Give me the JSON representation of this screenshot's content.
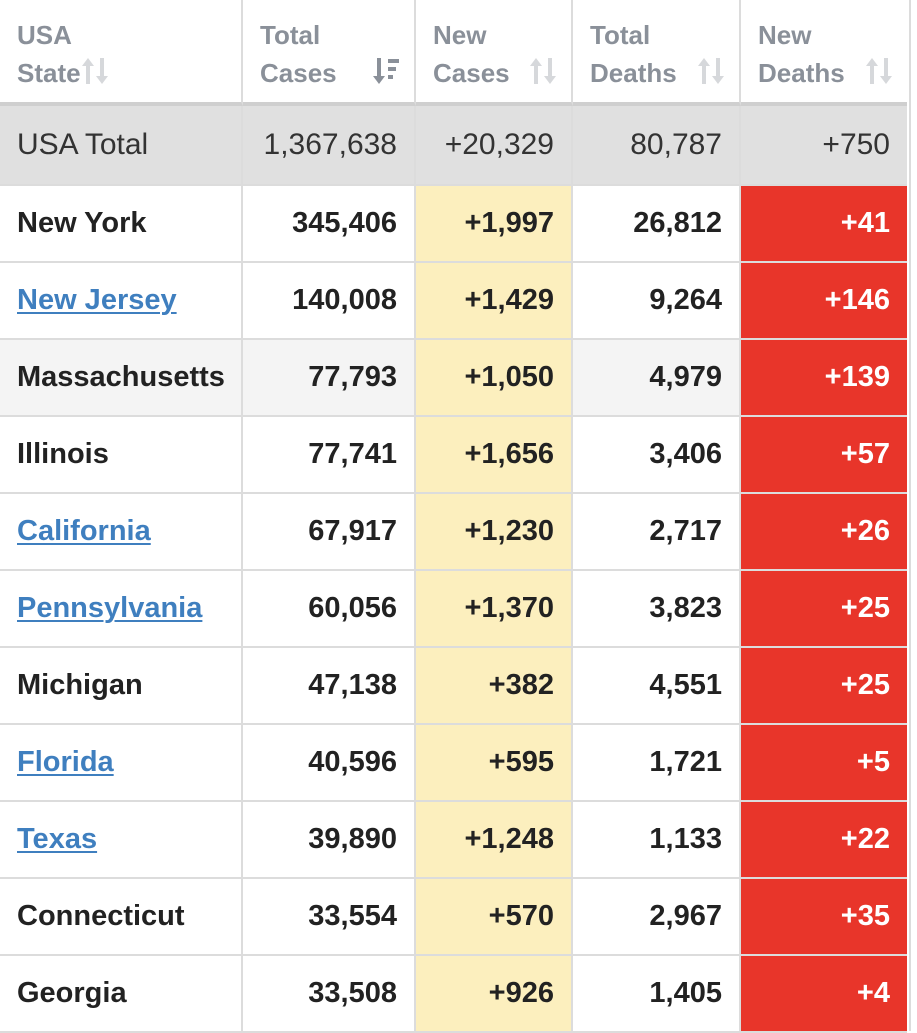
{
  "headers": [
    {
      "label": "USA\nState"
    },
    {
      "label": "Total\nCases"
    },
    {
      "label": "New\nCases"
    },
    {
      "label": "Total\nDeaths"
    },
    {
      "label": "New\nDeaths"
    }
  ],
  "total": {
    "state": "USA Total",
    "total_cases": "1,367,638",
    "new_cases": "+20,329",
    "total_deaths": "80,787",
    "new_deaths": "+750"
  },
  "rows": [
    {
      "state": "New York",
      "link": false,
      "total_cases": "345,406",
      "new_cases": "+1,997",
      "total_deaths": "26,812",
      "new_deaths": "+41"
    },
    {
      "state": "New Jersey",
      "link": true,
      "total_cases": "140,008",
      "new_cases": "+1,429",
      "total_deaths": "9,264",
      "new_deaths": "+146"
    },
    {
      "state": "Massachusetts",
      "link": false,
      "total_cases": "77,793",
      "new_cases": "+1,050",
      "total_deaths": "4,979",
      "new_deaths": "+139"
    },
    {
      "state": "Illinois",
      "link": false,
      "total_cases": "77,741",
      "new_cases": "+1,656",
      "total_deaths": "3,406",
      "new_deaths": "+57"
    },
    {
      "state": "California",
      "link": true,
      "total_cases": "67,917",
      "new_cases": "+1,230",
      "total_deaths": "2,717",
      "new_deaths": "+26"
    },
    {
      "state": "Pennsylvania",
      "link": true,
      "total_cases": "60,056",
      "new_cases": "+1,370",
      "total_deaths": "3,823",
      "new_deaths": "+25"
    },
    {
      "state": "Michigan",
      "link": false,
      "total_cases": "47,138",
      "new_cases": "+382",
      "total_deaths": "4,551",
      "new_deaths": "+25"
    },
    {
      "state": "Florida",
      "link": true,
      "total_cases": "40,596",
      "new_cases": "+595",
      "total_deaths": "1,721",
      "new_deaths": "+5"
    },
    {
      "state": "Texas",
      "link": true,
      "total_cases": "39,890",
      "new_cases": "+1,248",
      "total_deaths": "1,133",
      "new_deaths": "+22"
    },
    {
      "state": "Connecticut",
      "link": false,
      "total_cases": "33,554",
      "new_cases": "+570",
      "total_deaths": "2,967",
      "new_deaths": "+35"
    },
    {
      "state": "Georgia",
      "link": false,
      "total_cases": "33,508",
      "new_cases": "+926",
      "total_deaths": "1,405",
      "new_deaths": "+4"
    }
  ],
  "colors": {
    "new_cases_bg": "#fcefbe",
    "new_deaths_bg": "#e8352a",
    "link": "#3f7fbf",
    "header_text": "#8a9099"
  },
  "icons": {
    "sort_default": "sort-arrows-icon",
    "sort_active_desc": "sort-descending-icon"
  }
}
